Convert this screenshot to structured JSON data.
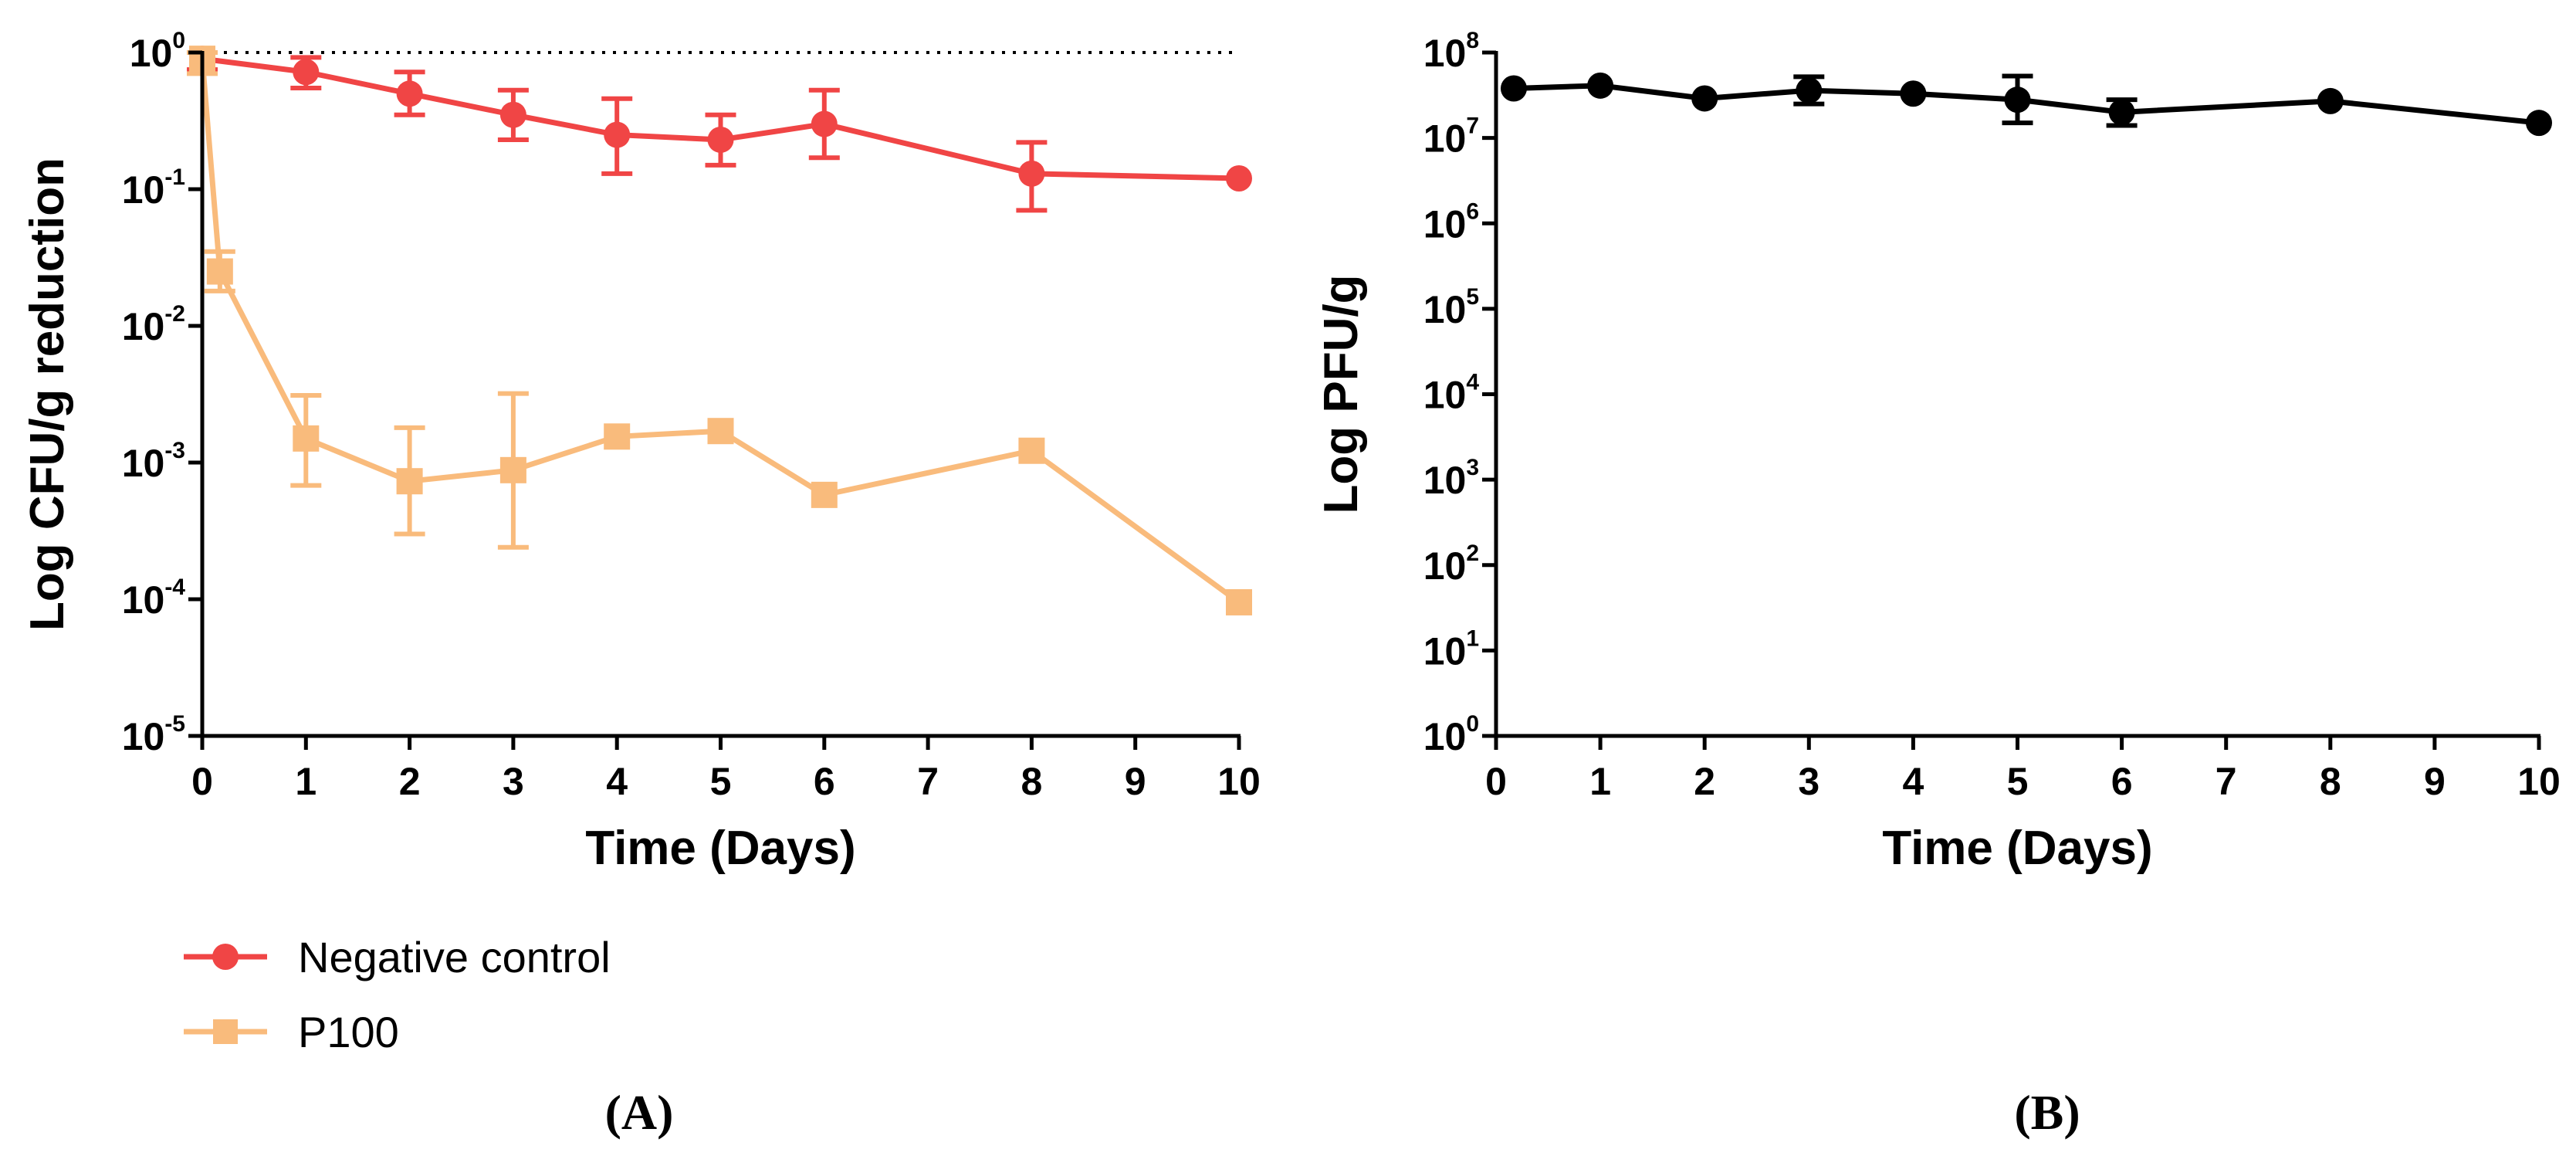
{
  "chart_data": [
    {
      "panel": "(A)",
      "type": "line",
      "scale": "log",
      "xlabel": "Time (Days)",
      "ylabel": "Log CFU/g reduction",
      "xlim": [
        0,
        10
      ],
      "ylim_exp": [
        -5,
        0
      ],
      "xticks": [
        "0",
        "1",
        "2",
        "3",
        "4",
        "5",
        "6",
        "7",
        "8",
        "9",
        "10"
      ],
      "yticks": [
        {
          "base": "10",
          "exp": "-5"
        },
        {
          "base": "10",
          "exp": "-4"
        },
        {
          "base": "10",
          "exp": "-3"
        },
        {
          "base": "10",
          "exp": "-2"
        },
        {
          "base": "10",
          "exp": "-1"
        },
        {
          "base": "10",
          "exp": "0"
        }
      ],
      "reference_line": 1,
      "series": [
        {
          "name": "Negative control",
          "color": "#f04545",
          "marker": "circle",
          "points": [
            {
              "x": 0,
              "y": 0.9,
              "lo": 0.75,
              "hi": 1.0
            },
            {
              "x": 1,
              "y": 0.72,
              "lo": 0.55,
              "hi": 0.92
            },
            {
              "x": 2,
              "y": 0.5,
              "lo": 0.35,
              "hi": 0.72
            },
            {
              "x": 3,
              "y": 0.35,
              "lo": 0.23,
              "hi": 0.53
            },
            {
              "x": 4,
              "y": 0.25,
              "lo": 0.13,
              "hi": 0.46
            },
            {
              "x": 5,
              "y": 0.23,
              "lo": 0.15,
              "hi": 0.35
            },
            {
              "x": 6,
              "y": 0.3,
              "lo": 0.17,
              "hi": 0.53
            },
            {
              "x": 8,
              "y": 0.13,
              "lo": 0.07,
              "hi": 0.22
            },
            {
              "x": 10,
              "y": 0.12
            }
          ]
        },
        {
          "name": "P100",
          "color": "#f9bb7c",
          "marker": "square",
          "points": [
            {
              "x": 0,
              "y": 0.9,
              "lo": 0.7,
              "hi": 1.0
            },
            {
              "x": 0.17,
              "y": 0.025,
              "lo": 0.018,
              "hi": 0.035
            },
            {
              "x": 1,
              "y": 0.0015,
              "lo": 0.00068,
              "hi": 0.0031
            },
            {
              "x": 2,
              "y": 0.00073,
              "lo": 0.0003,
              "hi": 0.0018
            },
            {
              "x": 3,
              "y": 0.00088,
              "lo": 0.00024,
              "hi": 0.0032
            },
            {
              "x": 4,
              "y": 0.00155
            },
            {
              "x": 5,
              "y": 0.0017
            },
            {
              "x": 6,
              "y": 0.00058
            },
            {
              "x": 8,
              "y": 0.00122
            },
            {
              "x": 10,
              "y": 9.5e-05
            }
          ]
        }
      ]
    },
    {
      "panel": "(B)",
      "type": "line",
      "scale": "log",
      "xlabel": "Time (Days)",
      "ylabel": "Log PFU/g",
      "xlim": [
        0,
        10
      ],
      "ylim_exp": [
        0,
        8
      ],
      "xticks": [
        "0",
        "1",
        "2",
        "3",
        "4",
        "5",
        "6",
        "7",
        "8",
        "9",
        "10"
      ],
      "yticks": [
        {
          "base": "10",
          "exp": "0"
        },
        {
          "base": "10",
          "exp": "1"
        },
        {
          "base": "10",
          "exp": "2"
        },
        {
          "base": "10",
          "exp": "3"
        },
        {
          "base": "10",
          "exp": "4"
        },
        {
          "base": "10",
          "exp": "5"
        },
        {
          "base": "10",
          "exp": "6"
        },
        {
          "base": "10",
          "exp": "7"
        },
        {
          "base": "10",
          "exp": "8"
        }
      ],
      "series": [
        {
          "name": "PFU",
          "color": "#000000",
          "marker": "circle",
          "points": [
            {
              "x": 0.17,
              "y": 38000000
            },
            {
              "x": 1,
              "y": 41000000
            },
            {
              "x": 2,
              "y": 29000000
            },
            {
              "x": 3,
              "y": 36000000,
              "lo": 25000000,
              "hi": 52000000
            },
            {
              "x": 4,
              "y": 33000000
            },
            {
              "x": 5,
              "y": 28000000,
              "lo": 15000000,
              "hi": 53000000
            },
            {
              "x": 6,
              "y": 20000000,
              "lo": 14000000,
              "hi": 28000000
            },
            {
              "x": 8,
              "y": 27000000
            },
            {
              "x": 10,
              "y": 15000000
            }
          ]
        }
      ]
    }
  ]
}
